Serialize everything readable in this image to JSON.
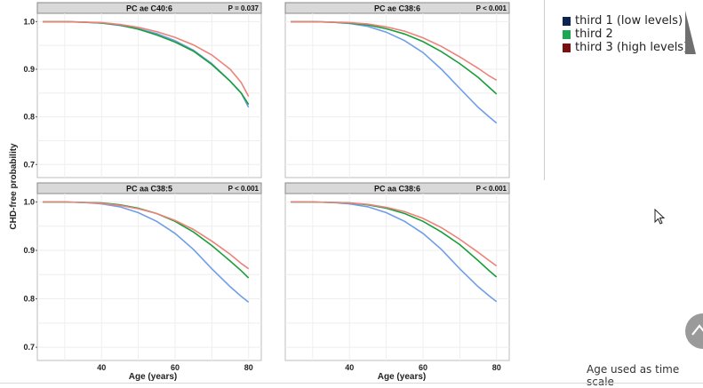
{
  "chart_data": {
    "type": "line",
    "ylabel": "CHD-free probability",
    "xlabel": "Age (years)",
    "x_ticks": [
      40,
      60,
      80
    ],
    "y_ticks": [
      0.7,
      0.8,
      0.9,
      1.0
    ],
    "y_tick_labels": [
      "0.7",
      "0.8",
      "0.9",
      "1.0"
    ],
    "xlim": [
      24,
      82
    ],
    "ylim": [
      0.68,
      1.01
    ],
    "grid": true,
    "panels": [
      {
        "title": "PC ae C40:6",
        "pvalue": "P = 0.037",
        "series": [
          {
            "name": "third 1 (low levels)",
            "x": [
              24,
              30,
              35,
              40,
              45,
              50,
              55,
              60,
              65,
              70,
              75,
              78,
              80
            ],
            "y": [
              1.0,
              1.0,
              0.999,
              0.997,
              0.992,
              0.985,
              0.975,
              0.96,
              0.94,
              0.912,
              0.875,
              0.85,
              0.82
            ]
          },
          {
            "name": "third 2",
            "x": [
              24,
              30,
              35,
              40,
              45,
              50,
              55,
              60,
              65,
              70,
              75,
              78,
              80
            ],
            "y": [
              1.0,
              1.0,
              0.999,
              0.997,
              0.993,
              0.984,
              0.972,
              0.957,
              0.938,
              0.91,
              0.875,
              0.85,
              0.826
            ]
          },
          {
            "name": "third 3 (high levels)",
            "x": [
              24,
              30,
              35,
              40,
              45,
              50,
              55,
              60,
              65,
              70,
              75,
              78,
              80
            ],
            "y": [
              1.0,
              1.0,
              0.999,
              0.998,
              0.994,
              0.988,
              0.979,
              0.967,
              0.951,
              0.93,
              0.9,
              0.872,
              0.843
            ]
          }
        ]
      },
      {
        "title": "PC ae C38:6",
        "pvalue": "P < 0.001",
        "series": [
          {
            "name": "third 1 (low levels)",
            "x": [
              24,
              30,
              35,
              40,
              45,
              50,
              55,
              60,
              65,
              70,
              75,
              78,
              80
            ],
            "y": [
              1.0,
              1.0,
              0.999,
              0.996,
              0.99,
              0.978,
              0.96,
              0.935,
              0.9,
              0.86,
              0.82,
              0.8,
              0.787
            ]
          },
          {
            "name": "third 2",
            "x": [
              24,
              30,
              35,
              40,
              45,
              50,
              55,
              60,
              65,
              70,
              75,
              78,
              80
            ],
            "y": [
              1.0,
              1.0,
              0.999,
              0.997,
              0.993,
              0.985,
              0.974,
              0.958,
              0.937,
              0.912,
              0.883,
              0.862,
              0.848
            ]
          },
          {
            "name": "third 3 (high levels)",
            "x": [
              24,
              30,
              35,
              40,
              45,
              50,
              55,
              60,
              65,
              70,
              75,
              78,
              80
            ],
            "y": [
              1.0,
              1.0,
              0.999,
              0.998,
              0.995,
              0.989,
              0.98,
              0.966,
              0.948,
              0.926,
              0.902,
              0.886,
              0.877
            ]
          }
        ]
      },
      {
        "title": "PC aa C38:5",
        "pvalue": "P < 0.001",
        "series": [
          {
            "name": "third 1 (low levels)",
            "x": [
              24,
              30,
              35,
              40,
              45,
              50,
              55,
              60,
              65,
              70,
              75,
              78,
              80
            ],
            "y": [
              1.0,
              1.0,
              0.999,
              0.996,
              0.99,
              0.978,
              0.96,
              0.935,
              0.902,
              0.862,
              0.825,
              0.805,
              0.793
            ]
          },
          {
            "name": "third 2",
            "x": [
              24,
              30,
              35,
              40,
              45,
              50,
              55,
              60,
              65,
              70,
              75,
              78,
              80
            ],
            "y": [
              1.0,
              1.0,
              0.999,
              0.998,
              0.994,
              0.987,
              0.976,
              0.96,
              0.938,
              0.91,
              0.878,
              0.858,
              0.843
            ]
          },
          {
            "name": "third 3 (high levels)",
            "x": [
              24,
              30,
              35,
              40,
              45,
              50,
              55,
              60,
              65,
              70,
              75,
              78,
              80
            ],
            "y": [
              1.0,
              1.0,
              0.999,
              0.997,
              0.993,
              0.986,
              0.976,
              0.962,
              0.943,
              0.919,
              0.892,
              0.873,
              0.862
            ]
          }
        ]
      },
      {
        "title": "PC aa C38:6",
        "pvalue": "P < 0.001",
        "series": [
          {
            "name": "third 1 (low levels)",
            "x": [
              24,
              30,
              35,
              40,
              45,
              50,
              55,
              60,
              65,
              70,
              75,
              78,
              80
            ],
            "y": [
              1.0,
              1.0,
              0.999,
              0.996,
              0.99,
              0.978,
              0.96,
              0.935,
              0.902,
              0.862,
              0.825,
              0.806,
              0.794
            ]
          },
          {
            "name": "third 2",
            "x": [
              24,
              30,
              35,
              40,
              45,
              50,
              55,
              60,
              65,
              70,
              75,
              78,
              80
            ],
            "y": [
              1.0,
              1.0,
              0.999,
              0.998,
              0.994,
              0.987,
              0.976,
              0.96,
              0.938,
              0.912,
              0.879,
              0.858,
              0.845
            ]
          },
          {
            "name": "third 3 (high levels)",
            "x": [
              24,
              30,
              35,
              40,
              45,
              50,
              55,
              60,
              65,
              70,
              75,
              78,
              80
            ],
            "y": [
              1.0,
              1.0,
              0.999,
              0.998,
              0.995,
              0.989,
              0.98,
              0.966,
              0.947,
              0.923,
              0.896,
              0.879,
              0.868
            ]
          }
        ]
      }
    ]
  },
  "series_colors": [
    "#6f9ee8",
    "#1a9e3a",
    "#ec837b"
  ],
  "legend": {
    "items": [
      {
        "label": "third 1 (low levels)",
        "color": "#0d2452"
      },
      {
        "label": "third 2",
        "color": "#1fa653"
      },
      {
        "label": "third 3 (high levels)",
        "color": "#7a1010"
      }
    ]
  },
  "footer_note": "Age used as time scale",
  "icons": {
    "scroll_button": "chevron-up-icon",
    "cursor": "mouse-pointer-icon",
    "legend_marker": "triangle-icon"
  }
}
